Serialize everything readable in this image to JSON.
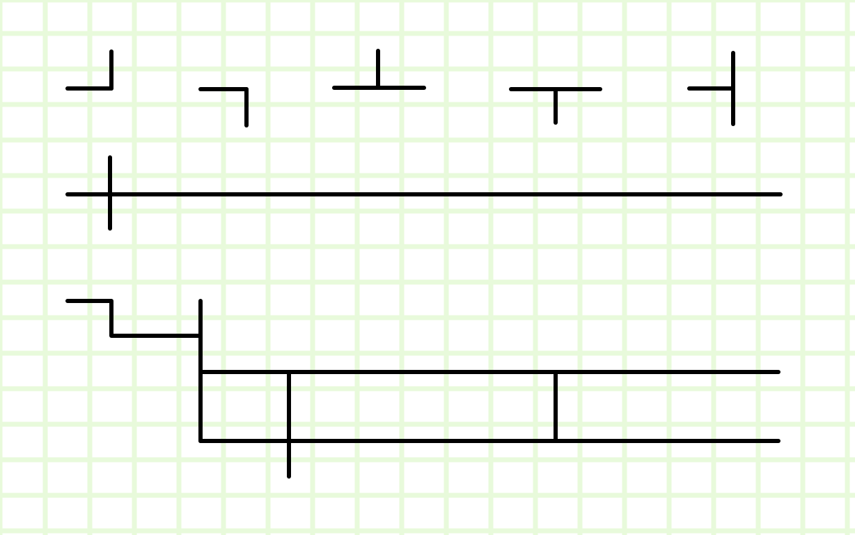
{
  "colors": {
    "background": "#ffffff",
    "grid": "#e8fadb",
    "stroke": "#000000"
  },
  "diagram": {
    "kind": "line-junction-glyphs",
    "grid_visible": true,
    "glyphs": [
      {
        "name": "corner-up-left",
        "shape": "┘"
      },
      {
        "name": "corner-down-left",
        "shape": "┐"
      },
      {
        "name": "tee-up",
        "shape": "┴"
      },
      {
        "name": "tee-down",
        "shape": "┬"
      },
      {
        "name": "tee-left",
        "shape": "┤"
      },
      {
        "name": "cross-line",
        "shape": "┼"
      },
      {
        "name": "branching-network",
        "shape": "composite"
      }
    ]
  }
}
